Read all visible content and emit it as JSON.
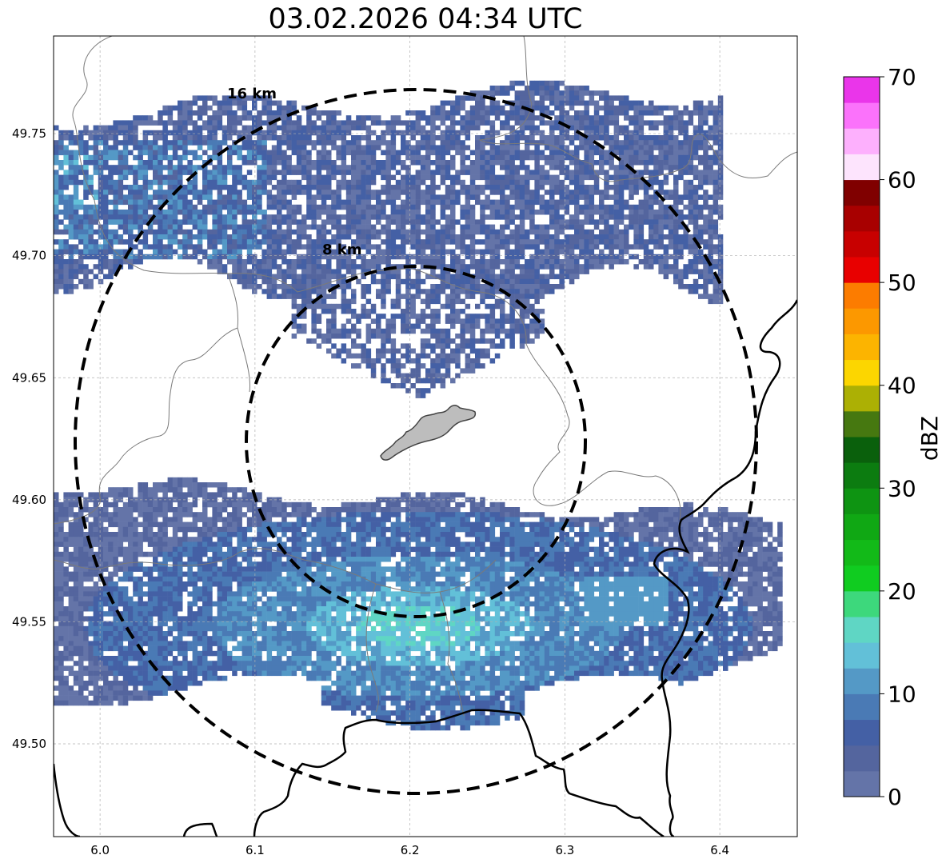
{
  "title": "03.02.2026 04:34 UTC",
  "map": {
    "type": "radar-reflectivity",
    "lon_range": [
      5.97,
      6.45
    ],
    "lat_range": [
      49.462,
      49.79
    ],
    "center": {
      "lon": 6.205,
      "lat": 49.623
    },
    "x_ticks": [
      "6.0",
      "6.1",
      "6.2",
      "6.3",
      "6.4"
    ],
    "x_tick_values": [
      6.0,
      6.1,
      6.2,
      6.3,
      6.4
    ],
    "y_ticks": [
      "49.50",
      "49.55",
      "49.60",
      "49.65",
      "49.70",
      "49.75"
    ],
    "y_tick_values": [
      49.5,
      49.55,
      49.6,
      49.65,
      49.7,
      49.75
    ],
    "rings": [
      {
        "label": "8 km",
        "radius_km": 8
      },
      {
        "label": "16 km",
        "radius_km": 16
      }
    ],
    "city_name": ""
  },
  "colorbar": {
    "label": "dBZ",
    "ticks": [
      "0",
      "10",
      "20",
      "30",
      "40",
      "50",
      "60",
      "70"
    ],
    "colors": [
      "#6474a8",
      "#54659e",
      "#4460a5",
      "#4a7ab5",
      "#5499c6",
      "#62c0d8",
      "#5fd6c4",
      "#3dd87c",
      "#10cc20",
      "#12ba18",
      "#10a814",
      "#0e9412",
      "#0c7c10",
      "#0a600c",
      "#467810",
      "#acb004",
      "#fcd600",
      "#fcb400",
      "#fc9800",
      "#fc7c00",
      "#e80000",
      "#c80000",
      "#a80000",
      "#800000",
      "#fde4fd",
      "#fdb0fd",
      "#fb72fb",
      "#ea35ea"
    ]
  },
  "precipitation_bands": [
    {
      "name": "northern band",
      "intensity_dbz": "2-15"
    },
    {
      "name": "southern band",
      "intensity_dbz": "2-22"
    }
  ]
}
